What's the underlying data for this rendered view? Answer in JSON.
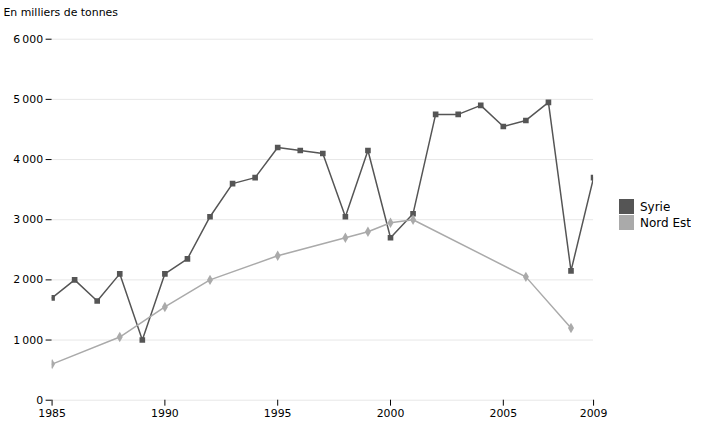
{
  "chart_data": {
    "type": "line",
    "ylabel": "En milliers de tonnes",
    "xlim": [
      1985,
      2009
    ],
    "ylim": [
      0,
      6000
    ],
    "xticks": [
      1985,
      1990,
      1995,
      2000,
      2005,
      2009
    ],
    "yticks": [
      0,
      {
        "value": 1000,
        "label": "1 000"
      },
      {
        "value": 2000,
        "label": "2 000"
      },
      {
        "value": 3000,
        "label": "3 000"
      },
      {
        "value": 4000,
        "label": "4 000"
      },
      {
        "value": 5000,
        "label": "5 000"
      },
      {
        "value": 6000,
        "label": "6 000"
      }
    ],
    "grid": true,
    "legend": "right",
    "series": [
      {
        "name": "Syrie",
        "color": "#555555",
        "marker": "square",
        "x": [
          1985,
          1986,
          1987,
          1988,
          1989,
          1990,
          1991,
          1992,
          1993,
          1994,
          1995,
          1996,
          1997,
          1998,
          1999,
          2000,
          2001,
          2002,
          2003,
          2004,
          2005,
          2006,
          2007,
          2008,
          2009
        ],
        "values": [
          1700,
          2000,
          1650,
          2100,
          1000,
          2100,
          2350,
          3050,
          3600,
          3700,
          4200,
          4150,
          4100,
          3050,
          4150,
          2700,
          3100,
          4750,
          4750,
          4900,
          4550,
          4650,
          4950,
          2150,
          3700
        ]
      },
      {
        "name": "Nord Est",
        "color": "#aaaaaa",
        "marker": "diamond",
        "x": [
          1985,
          1988,
          1990,
          1992,
          1995,
          1998,
          1999,
          2000,
          2001,
          2006,
          2008
        ],
        "values": [
          600,
          1050,
          1550,
          2000,
          2400,
          2700,
          2800,
          2950,
          3000,
          2050,
          1200
        ]
      }
    ]
  }
}
